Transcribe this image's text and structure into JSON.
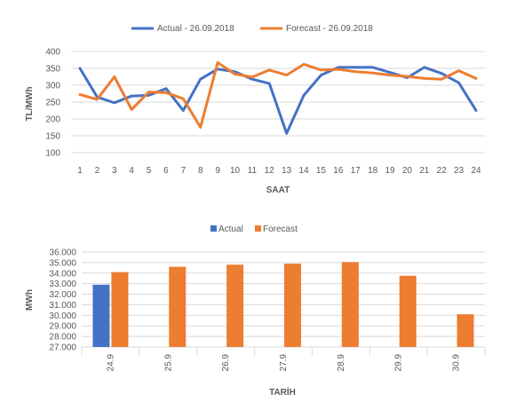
{
  "chart_data": [
    {
      "type": "line",
      "x": [
        1,
        2,
        3,
        4,
        5,
        6,
        7,
        8,
        9,
        10,
        11,
        12,
        13,
        14,
        15,
        16,
        17,
        18,
        19,
        20,
        21,
        22,
        23,
        24
      ],
      "series": [
        {
          "name": "Actual - 26.09.2018",
          "color": "#4472c4",
          "values": [
            350,
            265,
            248,
            268,
            270,
            290,
            225,
            318,
            348,
            340,
            318,
            305,
            157,
            270,
            330,
            353,
            353,
            353,
            338,
            322,
            353,
            335,
            307,
            225
          ]
        },
        {
          "name": "Forecast - 26.09.2018",
          "color": "#ed7d31",
          "values": [
            272,
            258,
            325,
            228,
            280,
            278,
            260,
            175,
            367,
            333,
            324,
            345,
            330,
            362,
            345,
            347,
            340,
            336,
            330,
            326,
            320,
            318,
            343,
            320
          ]
        }
      ],
      "xlabel": "SAAT",
      "ylabel": "TL/MWh",
      "ylim": [
        100,
        400
      ],
      "yticks": [
        "100",
        "150",
        "200",
        "250",
        "300",
        "350",
        "400"
      ],
      "legend": "top",
      "grid": true
    },
    {
      "type": "bar",
      "categories": [
        "24.9",
        "25.9",
        "26.9",
        "27.9",
        "28.9",
        "29.9",
        "30.9"
      ],
      "series": [
        {
          "name": "Actual",
          "color": "#4472c4",
          "values": [
            32900,
            null,
            null,
            null,
            null,
            null,
            null
          ]
        },
        {
          "name": "Forecast",
          "color": "#ed7d31",
          "values": [
            34100,
            34600,
            34800,
            34900,
            35050,
            33750,
            30100
          ]
        }
      ],
      "xlabel": "TARİH",
      "ylabel": "MWh",
      "ylim": [
        27000,
        36000
      ],
      "yticks": [
        "27.000",
        "28.000",
        "29.000",
        "30.000",
        "31.000",
        "32.000",
        "33.000",
        "34.000",
        "35.000",
        "36.000"
      ],
      "legend": "top",
      "grid": true
    }
  ]
}
